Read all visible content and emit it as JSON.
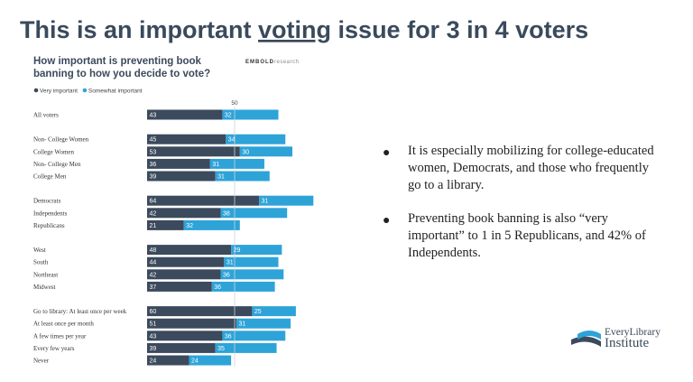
{
  "slide": {
    "title_parts": [
      "This is an important ",
      "voting",
      " issue for 3 in 4 voters"
    ],
    "bullets": [
      "It is especially mobilizing for college-educated women, Democrats, and those who frequently go to a library.",
      "Preventing book banning is also “very important” to 1 in 5 Republicans, and 42% of Independents."
    ],
    "logo": [
      "EveryLibrary",
      "Institute"
    ]
  },
  "chart_data": {
    "type": "stacked-bar-horizontal",
    "title": [
      "How important is preventing book",
      "banning to how you decide to vote?"
    ],
    "brand": [
      "EMBOLD",
      "research"
    ],
    "categories": [
      "All voters",
      null,
      "Non- College Women",
      "College Women",
      "Non- College Men",
      "College Men",
      null,
      "Democrats",
      "Independents",
      "Republicans",
      null,
      "West",
      "South",
      "Northeast",
      "Midwest",
      null,
      "Go to library: At least once per week",
      "At least once per month",
      "A few times per year",
      "Every few years",
      "Never"
    ],
    "series": [
      {
        "name": "Very important",
        "color": "#3b4a5c",
        "values": [
          43,
          null,
          45,
          53,
          36,
          39,
          null,
          64,
          42,
          21,
          null,
          48,
          44,
          42,
          37,
          null,
          60,
          51,
          43,
          39,
          24
        ]
      },
      {
        "name": "Somewhat important",
        "color": "#2ea3d8",
        "values": [
          32,
          null,
          34,
          30,
          31,
          31,
          null,
          31,
          38,
          32,
          null,
          29,
          31,
          36,
          36,
          null,
          25,
          31,
          36,
          35,
          24
        ]
      }
    ],
    "xlim": [
      0,
      100
    ],
    "xticks": [
      50
    ]
  }
}
